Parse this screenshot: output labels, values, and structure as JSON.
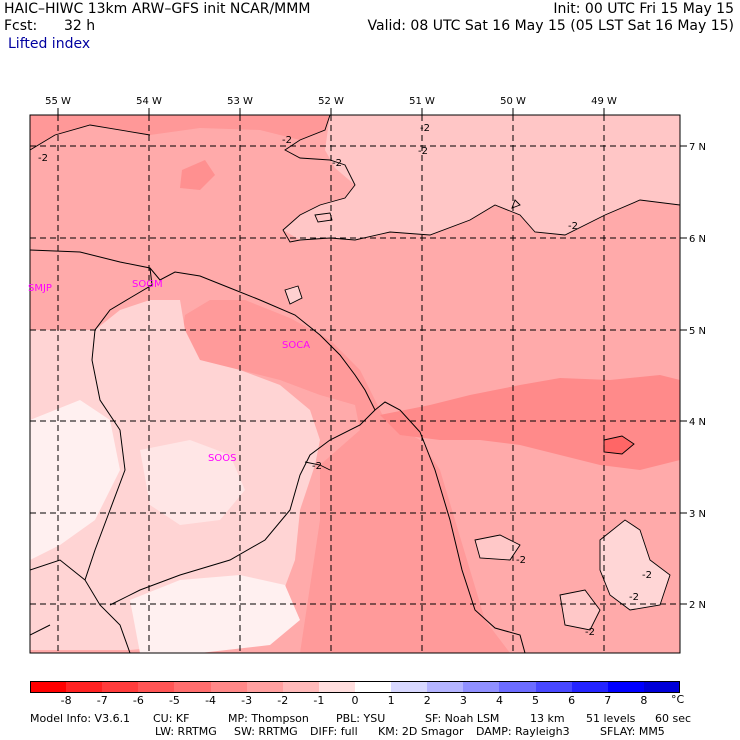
{
  "header": {
    "model_line": "HAIC–HIWC 13km ARW–GFS init    NCAR/MMM",
    "fcst_label": "Fcst:",
    "fcst_value": "32 h",
    "field_name": "Lifted index",
    "init_line": "Init: 00 UTC Fri 15 May 15",
    "valid_line": "Valid: 08 UTC Sat 16 May 15 (05 LST Sat 16 May 15)"
  },
  "map": {
    "lon_labels": [
      "55 W",
      "54 W",
      "53 W",
      "52 W",
      "51 W",
      "50 W",
      "49 W"
    ],
    "lat_labels": [
      "7 N",
      "6 N",
      "5 N",
      "4 N",
      "3 N",
      "2 N"
    ],
    "stations": [
      "SMJP",
      "SOGM",
      "SOCA",
      "SOOS"
    ],
    "contour_labels": [
      "-2",
      "-2",
      "-2",
      "-2",
      "-2",
      "-2",
      "-2",
      "-2",
      "-2",
      "-2",
      "-2"
    ]
  },
  "colorbar": {
    "ticks": [
      "-8",
      "-7",
      "-6",
      "-5",
      "-4",
      "-3",
      "-2",
      "-1",
      "0",
      "1",
      "2",
      "3",
      "4",
      "5",
      "6",
      "7",
      "8"
    ],
    "unit": "°C",
    "colors": [
      "#ff0000",
      "#ff2222",
      "#ff3c3c",
      "#ff5555",
      "#ff6e6e",
      "#ff8888",
      "#ffa0a0",
      "#ffbaba",
      "#ffdede",
      "#ffffff",
      "#d8d8ff",
      "#b4b4ff",
      "#9090ff",
      "#6c6cff",
      "#4848ff",
      "#2424ff",
      "#0000ff",
      "#0000d8"
    ]
  },
  "footer": {
    "line1": [
      "Model Info: V3.6.1",
      "CU: KF",
      "MP: Thompson",
      "PBL: YSU",
      "SF: Noah LSM",
      "13 km",
      "51 levels",
      "60 sec"
    ],
    "line2": [
      "LW: RRTMG",
      "SW: RRTMG",
      "DIFF: full",
      "KM: 2D Smagor",
      "DAMP: Rayleigh3",
      "SFLAY: MM5"
    ]
  }
}
